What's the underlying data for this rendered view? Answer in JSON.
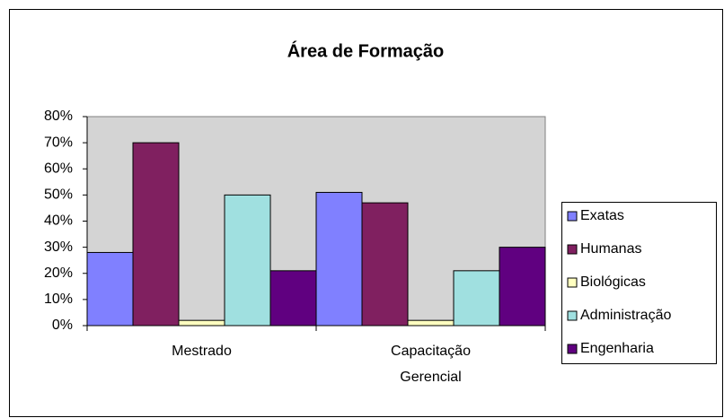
{
  "chart_data": {
    "type": "bar",
    "title": "Área de Formação",
    "categories": [
      "Mestrado",
      "Capacitação Gerencial"
    ],
    "series": [
      {
        "name": "Exatas",
        "color": "#8080ff",
        "values": [
          28,
          51
        ]
      },
      {
        "name": "Humanas",
        "color": "#802060",
        "values": [
          70,
          47
        ]
      },
      {
        "name": "Biológicas",
        "color": "#ffffc0",
        "values": [
          2,
          2
        ]
      },
      {
        "name": "Administração",
        "color": "#a0e0e0",
        "values": [
          50,
          21
        ]
      },
      {
        "name": "Engenharia",
        "color": "#600080",
        "values": [
          21,
          30
        ]
      }
    ],
    "ylim": [
      0,
      80
    ],
    "yticks": [
      {
        "value": 0,
        "label": "0%"
      },
      {
        "value": 10,
        "label": "10%"
      },
      {
        "value": 20,
        "label": "20%"
      },
      {
        "value": 30,
        "label": "30%"
      },
      {
        "value": 40,
        "label": "40%"
      },
      {
        "value": 50,
        "label": "50%"
      },
      {
        "value": 60,
        "label": "60%"
      },
      {
        "value": 70,
        "label": "70%"
      },
      {
        "value": 80,
        "label": "80%"
      }
    ],
    "legend": "right"
  }
}
